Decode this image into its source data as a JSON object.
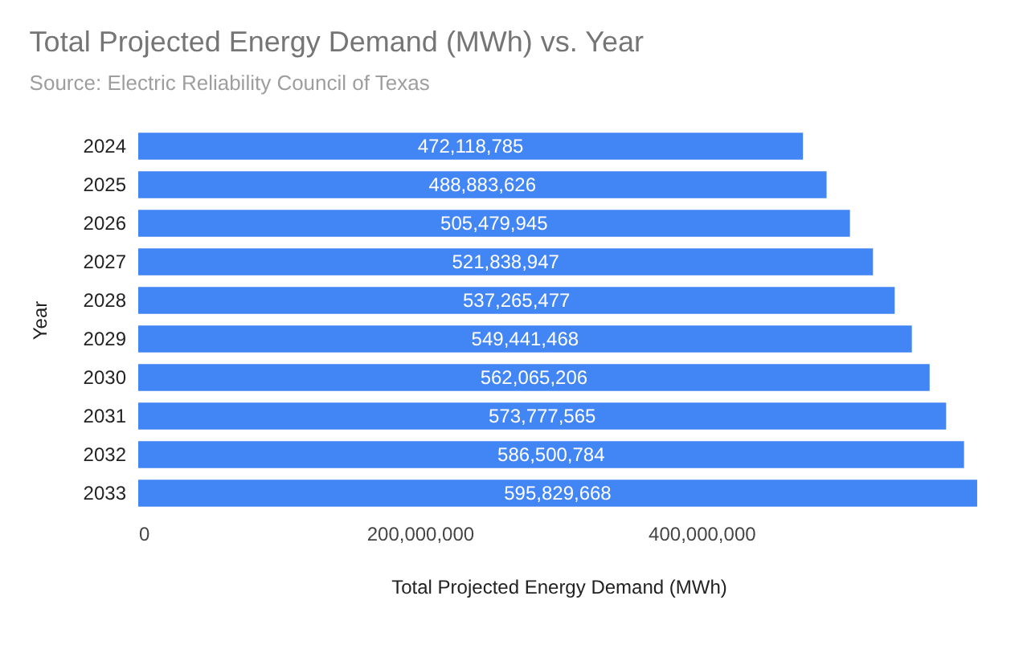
{
  "chart_data": {
    "type": "bar",
    "orientation": "horizontal",
    "title": "Total Projected Energy Demand (MWh) vs. Year",
    "subtitle": "Source: Electric Reliability Council of Texas",
    "xlabel": "Total Projected Energy Demand (MWh)",
    "ylabel": "Year",
    "categories": [
      "2024",
      "2025",
      "2026",
      "2027",
      "2028",
      "2029",
      "2030",
      "2031",
      "2032",
      "2033"
    ],
    "values": [
      472118785,
      488883626,
      505479945,
      521838947,
      537265477,
      549441468,
      562065206,
      573777565,
      586500784,
      595829668
    ],
    "color": "#4285f4",
    "value_labels": [
      "472,118,785",
      "488,883,626",
      "505,479,945",
      "521,838,947",
      "537,265,477",
      "549,441,468",
      "562,065,206",
      "573,777,565",
      "586,500,784",
      "595,829,668"
    ],
    "xlim": [
      0,
      597000000
    ],
    "xticks": [
      0,
      {
        "value": 200000000,
        "label": "200,000,000"
      },
      {
        "value": 400000000,
        "label": "400,000,000"
      }
    ],
    "grid": false
  }
}
